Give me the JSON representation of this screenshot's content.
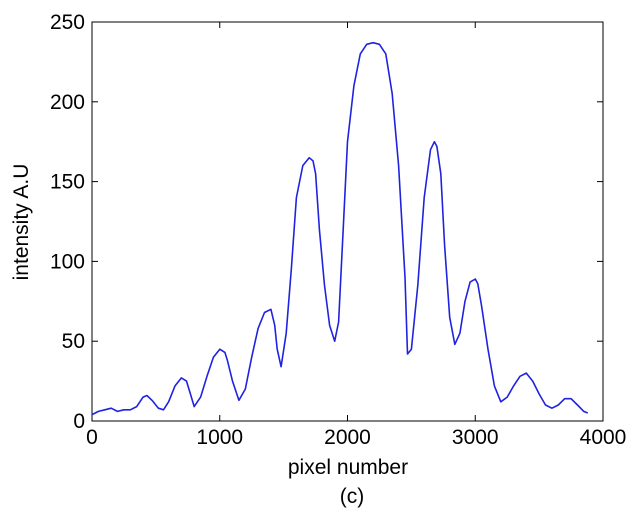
{
  "chart_data": {
    "type": "line",
    "xlabel": "pixel number",
    "ylabel": "intensity A.U",
    "caption": "(c)",
    "xlim": [
      0,
      4000
    ],
    "ylim": [
      0,
      250
    ],
    "xticks": [
      0,
      1000,
      2000,
      3000,
      4000
    ],
    "yticks": [
      0,
      50,
      100,
      150,
      200,
      250
    ],
    "xtick_labels": [
      "0",
      "1000",
      "2000",
      "3000",
      "4000"
    ],
    "ytick_labels": [
      "0",
      "50",
      "100",
      "150",
      "200",
      "250"
    ],
    "grid": false,
    "legend": "none",
    "series": [
      {
        "color": "#1f23e0",
        "x": [
          0,
          50,
          100,
          150,
          200,
          250,
          300,
          350,
          400,
          430,
          470,
          520,
          560,
          600,
          650,
          700,
          740,
          770,
          800,
          850,
          900,
          950,
          1000,
          1040,
          1060,
          1100,
          1150,
          1200,
          1250,
          1300,
          1350,
          1400,
          1430,
          1450,
          1480,
          1520,
          1560,
          1600,
          1650,
          1700,
          1730,
          1750,
          1780,
          1820,
          1860,
          1900,
          1930,
          1960,
          2000,
          2050,
          2100,
          2150,
          2200,
          2250,
          2300,
          2350,
          2400,
          2450,
          2470,
          2500,
          2550,
          2600,
          2650,
          2680,
          2700,
          2730,
          2760,
          2800,
          2840,
          2880,
          2920,
          2960,
          3000,
          3020,
          3050,
          3100,
          3150,
          3200,
          3250,
          3300,
          3350,
          3400,
          3450,
          3500,
          3550,
          3600,
          3650,
          3700,
          3750,
          3800,
          3850,
          3880
        ],
        "y": [
          4,
          6,
          7,
          8,
          6,
          7,
          7,
          9,
          15,
          16,
          13,
          8,
          7,
          12,
          22,
          27,
          25,
          17,
          9,
          15,
          28,
          40,
          45,
          43,
          38,
          25,
          13,
          20,
          40,
          58,
          68,
          70,
          60,
          45,
          34,
          55,
          95,
          140,
          160,
          165,
          163,
          155,
          120,
          85,
          60,
          50,
          62,
          110,
          175,
          210,
          230,
          236,
          237,
          236,
          230,
          205,
          160,
          90,
          42,
          45,
          85,
          140,
          170,
          175,
          172,
          155,
          110,
          65,
          48,
          55,
          75,
          87,
          89,
          86,
          72,
          45,
          22,
          12,
          15,
          22,
          28,
          30,
          25,
          17,
          10,
          8,
          10,
          14,
          14,
          10,
          6,
          5
        ]
      }
    ]
  }
}
